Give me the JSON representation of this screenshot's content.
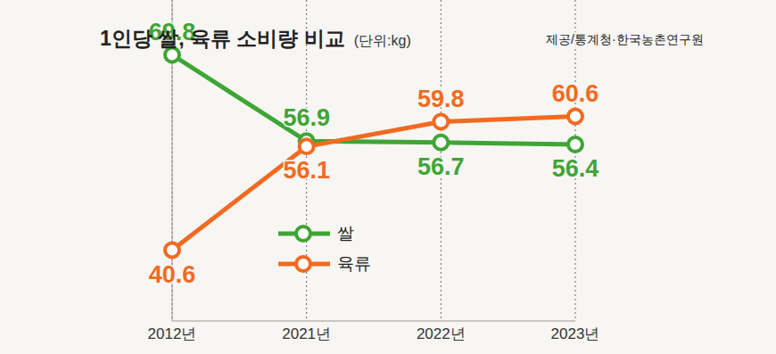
{
  "chart_data": {
    "type": "line",
    "title": "1인당 쌀, 육류 소비량 비교",
    "subtitle": "(단위:kg)",
    "source": "제공/통계청·한국농촌연구원",
    "categories": [
      "2012년",
      "2021년",
      "2022년",
      "2023년"
    ],
    "series": [
      {
        "name": "쌀",
        "color": "#3fa535",
        "marker": "circle",
        "values": [
          69.8,
          56.9,
          56.7,
          56.4
        ]
      },
      {
        "name": "육류",
        "color": "#f26a21",
        "marker": "circle",
        "values": [
          40.6,
          56.1,
          59.8,
          60.6
        ]
      }
    ],
    "ylim": [
      30,
      78
    ],
    "yticks": [],
    "grid": true,
    "legend": "center",
    "data_labels": true,
    "tick_labels": "x"
  }
}
